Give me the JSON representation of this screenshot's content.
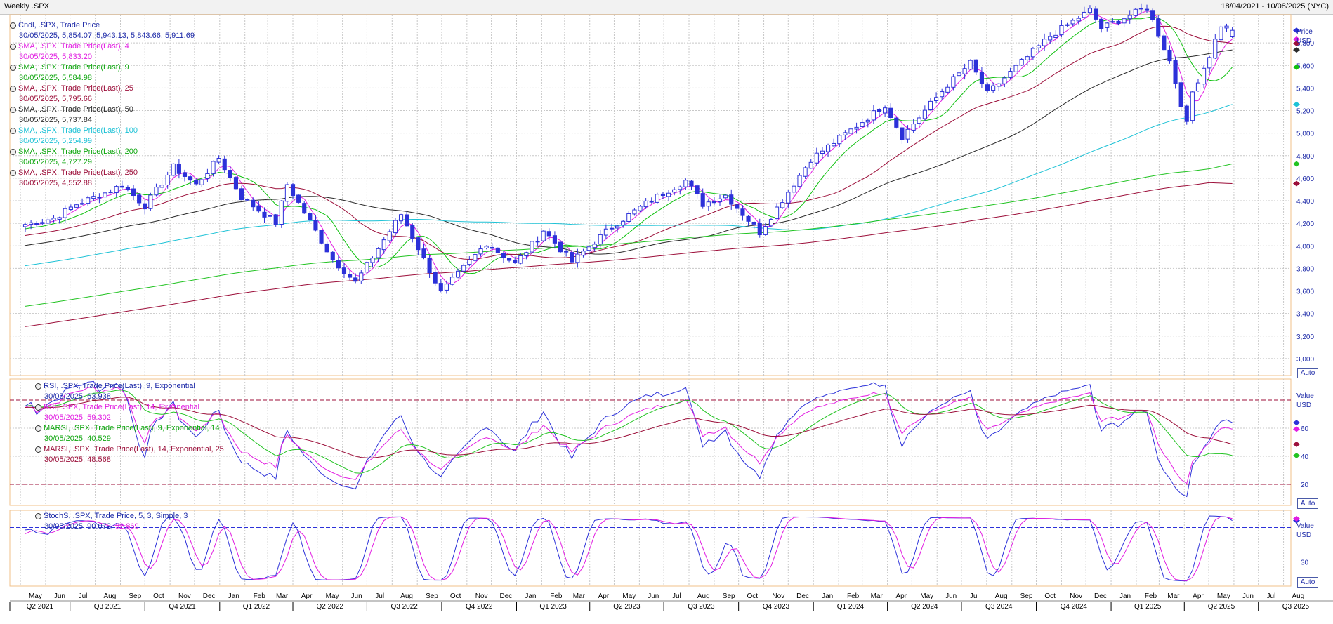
{
  "header": {
    "title": "Weekly .SPX",
    "range": "18/04/2021 - 10/08/2025 (NYC)"
  },
  "colors": {
    "candle": "#2c31d9",
    "sma4": "#e21ce2",
    "sma9": "#0fc10f",
    "sma25": "#9c0f3a",
    "sma50": "#2a2a2a",
    "sma100": "#1ec2d6",
    "sma200": "#22c322",
    "sma250": "#9c0f3a",
    "rsi9": "#2c31d9",
    "rsi14": "#e21ce2",
    "marsi9": "#22c322",
    "marsi14": "#9c0f3a",
    "stoch_k": "#2c31d9",
    "stoch_d": "#e21ce2"
  },
  "price_legend": [
    {
      "label": "Cndl, .SPX, Trade Price",
      "value": "30/05/2025, 5,854.07, 5,943.13, 5,843.66, 5,911.69",
      "color": "#1d2aa8"
    },
    {
      "label": "SMA, .SPX, Trade Price(Last),  4",
      "value": "30/05/2025, 5,833.20",
      "color": "#e21ce2"
    },
    {
      "label": "SMA, .SPX, Trade Price(Last),  9",
      "value": "30/05/2025, 5,584.98",
      "color": "#0ea60e"
    },
    {
      "label": "SMA, .SPX, Trade Price(Last),  25",
      "value": "30/05/2025, 5,795.66",
      "color": "#9c0f3a"
    },
    {
      "label": "SMA, .SPX, Trade Price(Last),  50",
      "value": "30/05/2025, 5,737.84",
      "color": "#2a2a2a"
    },
    {
      "label": "SMA, .SPX, Trade Price(Last),  100",
      "value": "30/05/2025, 5,254.99",
      "color": "#1ec2d6"
    },
    {
      "label": "SMA, .SPX, Trade Price(Last),  200",
      "value": "30/05/2025, 4,727.29",
      "color": "#22c322"
    },
    {
      "label": "SMA, .SPX, Trade Price(Last),  250",
      "value": "30/05/2025, 4,552.88",
      "color": "#9c0f3a"
    }
  ],
  "rsi_legend": [
    {
      "label": "RSI, .SPX, Trade Price(Last),  9, Exponential",
      "value": "30/05/2025, 63.938",
      "color": "#1d2aa8"
    },
    {
      "label": "RSI, .SPX, Trade Price(Last),  14, Exponential",
      "value": "30/05/2025, 59.302",
      "color": "#e21ce2"
    },
    {
      "label": "MARSI, .SPX, Trade Price(Last),  9, Exponential, 14",
      "value": "30/05/2025, 40.529",
      "color": "#0ea60e"
    },
    {
      "label": "MARSI, .SPX, Trade Price(Last),  14, Exponential, 25",
      "value": "30/05/2025, 48.568",
      "color": "#9c0f3a"
    }
  ],
  "stoch_legend": [
    {
      "label": "StochS, .SPX, Trade Price,  5, 3, Simple, 3",
      "value_a": "30/05/2025, 90.072,",
      "value_b": "92.869",
      "color": "#1d2aa8",
      "color_b": "#e21ce2"
    }
  ],
  "axes": {
    "price_title": "Price",
    "price_unit": "USD",
    "value_title": "Value",
    "value_unit": "USD",
    "auto_label": "Auto",
    "price_ticks": [
      "3,000",
      "3,200",
      "3,400",
      "3,600",
      "3,800",
      "4,000",
      "4,200",
      "4,400",
      "4,600",
      "4,800",
      "5,000",
      "5,200",
      "5,400",
      "5,600",
      "5,800"
    ],
    "rsi_ticks": [
      "20",
      "40",
      "60"
    ],
    "stoch_ticks": [
      "30"
    ],
    "months": [
      "May",
      "Jun",
      "Jul",
      "Aug",
      "Sep",
      "Oct",
      "Nov",
      "Dec",
      "Jan",
      "Feb",
      "Mar",
      "Apr",
      "May",
      "Jun",
      "Jul",
      "Aug",
      "Sep",
      "Oct",
      "Nov",
      "Dec",
      "Jan",
      "Feb",
      "Mar",
      "Apr",
      "May",
      "Jun",
      "Jul",
      "Aug",
      "Sep",
      "Oct",
      "Nov",
      "Dec",
      "Jan",
      "Feb",
      "Mar",
      "Apr",
      "May",
      "Jun",
      "Jul",
      "Aug",
      "Sep",
      "Oct",
      "Nov",
      "Dec",
      "Jan",
      "Feb",
      "Mar",
      "Apr",
      "May",
      "Jun",
      "Jul",
      "Aug"
    ],
    "quarters": [
      "Q2 2021",
      "Q3 2021",
      "Q4 2021",
      "Q1 2022",
      "Q2 2022",
      "Q3 2022",
      "Q4 2022",
      "Q1 2023",
      "Q2 2023",
      "Q3 2023",
      "Q4 2023",
      "Q1 2024",
      "Q2 2024",
      "Q3 2024",
      "Q4 2024",
      "Q1 2025",
      "Q2 2025",
      "Q3 2025"
    ]
  },
  "chart_data": [
    {
      "type": "candlestick",
      "title": "Weekly .SPX",
      "ylabel": "Price USD",
      "ylim": [
        2850,
        6050
      ],
      "x_range": [
        "2021-04-18",
        "2025-08-10"
      ],
      "anchors": [
        [
          "2021-04-30",
          4180
        ],
        [
          "2021-06-11",
          4245
        ],
        [
          "2021-07-09",
          4370
        ],
        [
          "2021-08-13",
          4470
        ],
        [
          "2021-09-03",
          4540
        ],
        [
          "2021-10-01",
          4355
        ],
        [
          "2021-11-05",
          4700
        ],
        [
          "2021-12-03",
          4540
        ],
        [
          "2021-12-31",
          4780
        ],
        [
          "2022-01-28",
          4430
        ],
        [
          "2022-03-11",
          4205
        ],
        [
          "2022-03-25",
          4545
        ],
        [
          "2022-04-29",
          4130
        ],
        [
          "2022-05-20",
          3880
        ],
        [
          "2022-06-17",
          3675
        ],
        [
          "2022-07-29",
          4130
        ],
        [
          "2022-08-12",
          4280
        ],
        [
          "2022-09-30",
          3585
        ],
        [
          "2022-10-21",
          3750
        ],
        [
          "2022-11-25",
          4025
        ],
        [
          "2022-12-30",
          3840
        ],
        [
          "2023-01-27",
          4070
        ],
        [
          "2023-02-03",
          4140
        ],
        [
          "2023-03-10",
          3860
        ],
        [
          "2023-04-28",
          4170
        ],
        [
          "2023-06-16",
          4410
        ],
        [
          "2023-07-28",
          4580
        ],
        [
          "2023-08-18",
          4370
        ],
        [
          "2023-09-15",
          4450
        ],
        [
          "2023-10-27",
          4120
        ],
        [
          "2023-12-29",
          4770
        ],
        [
          "2024-03-29",
          5250
        ],
        [
          "2024-04-19",
          4970
        ],
        [
          "2024-06-14",
          5430
        ],
        [
          "2024-07-12",
          5620
        ],
        [
          "2024-08-02",
          5350
        ],
        [
          "2024-09-13",
          5630
        ],
        [
          "2024-10-18",
          5860
        ],
        [
          "2024-12-06",
          6090
        ],
        [
          "2024-12-20",
          5930
        ],
        [
          "2025-02-14",
          6115
        ],
        [
          "2025-03-14",
          5640
        ],
        [
          "2025-04-04",
          5075
        ],
        [
          "2025-04-11",
          5365
        ],
        [
          "2025-05-02",
          5690
        ],
        [
          "2025-05-16",
          5958
        ],
        [
          "2025-05-30",
          5912
        ]
      ],
      "last_candle": {
        "date": "2025-05-30",
        "open": 5854.07,
        "high": 5943.13,
        "low": 5843.66,
        "close": 5911.69
      },
      "series": [
        {
          "name": "SMA 4",
          "period": 4,
          "last": 5833.2
        },
        {
          "name": "SMA 9",
          "period": 9,
          "last": 5584.98
        },
        {
          "name": "SMA 25",
          "period": 25,
          "last": 5795.66
        },
        {
          "name": "SMA 50",
          "period": 50,
          "last": 5737.84
        },
        {
          "name": "SMA 100",
          "period": 100,
          "last": 5254.99
        },
        {
          "name": "SMA 200",
          "period": 200,
          "last": 4727.29
        },
        {
          "name": "SMA 250",
          "period": 250,
          "last": 4552.88
        }
      ]
    },
    {
      "type": "line",
      "ylabel": "Value USD",
      "ylim": [
        5,
        95
      ],
      "hlines": [
        20,
        80
      ],
      "series": [
        {
          "name": "RSI 9",
          "last": 63.938
        },
        {
          "name": "RSI 14",
          "last": 59.302
        },
        {
          "name": "MARSI 9",
          "last": 40.529
        },
        {
          "name": "MARSI 14",
          "last": 48.568
        }
      ]
    },
    {
      "type": "line",
      "ylabel": "Value USD",
      "ylim": [
        -5,
        105
      ],
      "hlines": [
        20,
        80
      ],
      "series": [
        {
          "name": "StochS %K",
          "last": 90.072
        },
        {
          "name": "StochS %D",
          "last": 92.869
        }
      ]
    }
  ]
}
